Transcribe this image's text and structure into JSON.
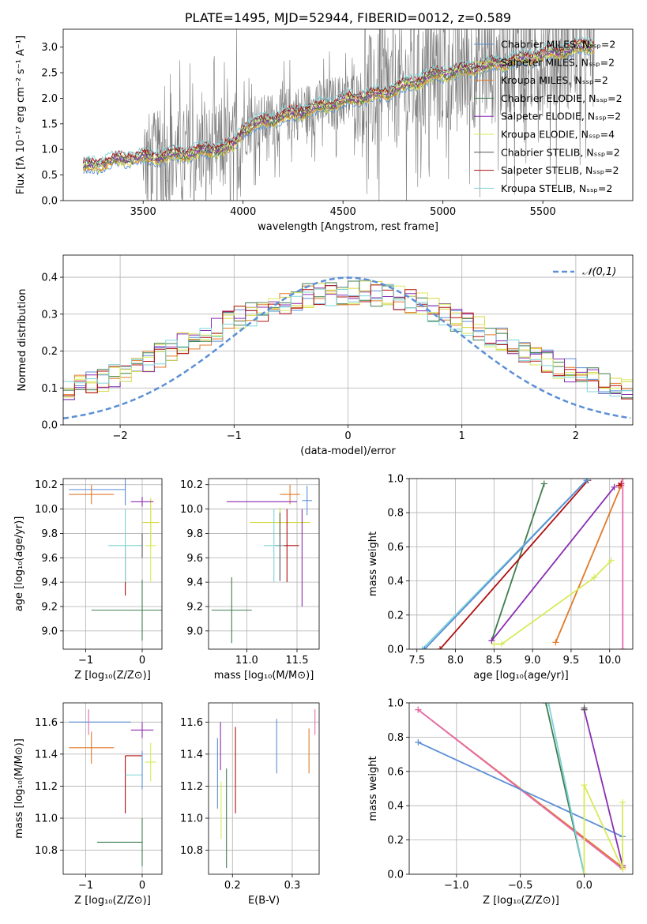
{
  "colors": {
    "chabrier_miles": "#5b8fd6",
    "salpeter_miles": "#d8d840",
    "kroupa_miles": "#e07a2a",
    "chabrier_elodie": "#3f7d4f",
    "salpeter_elodie": "#8a2db0",
    "kroupa_elodie": "#d8ea5a",
    "chabrier_stelib": "#555555",
    "salpeter_stelib": "#b01010",
    "kroupa_stelib": "#7fd3d8",
    "pink": "#e56bb0",
    "data_gray": "#7a7a7a",
    "normal_curve": "#5b8fd6"
  },
  "chart_data": [
    {
      "id": "spectrum",
      "type": "line",
      "title": "PLATE=1495, MJD=52944, FIBERID=0012, z=0.589",
      "xlabel": "wavelength [Angstrom, rest frame]",
      "ylabel": "Flux [fλ 10⁻¹⁷ erg cm⁻² s⁻¹ A⁻¹]",
      "xlim": [
        3100,
        5950
      ],
      "ylim": [
        0,
        3.35
      ],
      "xticks": [
        3500,
        4000,
        4500,
        5000,
        5500
      ],
      "yticks": [
        0.0,
        0.5,
        1.0,
        1.5,
        2.0,
        2.5,
        3.0
      ],
      "legend": [
        "Chabrier MILES, Nₛₛₚ=2",
        "Salpeter MILES, Nₛₛₚ=2",
        "Kroupa MILES, Nₛₛₚ=2",
        "Chabrier ELODIE, Nₛₛₚ=2",
        "Salpeter ELODIE, Nₛₛₚ=2",
        "Kroupa ELODIE, Nₛₛₚ=4",
        "Chabrier STELIB, Nₛₛₚ=2",
        "Salpeter STELIB, Nₛₛₚ=2",
        "Kroupa STELIB, Nₛₛₚ=2"
      ],
      "legend_position": "right",
      "model_continuum": {
        "x": [
          3200,
          3280,
          3400,
          3550,
          3700,
          3850,
          3950,
          4000,
          4150,
          4300,
          4500,
          4700,
          4850,
          4950,
          5100,
          5300,
          5500,
          5750
        ],
        "y": [
          0.65,
          0.72,
          0.82,
          0.85,
          0.92,
          1.0,
          1.05,
          1.4,
          1.6,
          1.75,
          1.95,
          2.1,
          2.3,
          2.45,
          2.55,
          2.7,
          2.85,
          3.05
        ]
      }
    },
    {
      "id": "residuals",
      "type": "bar",
      "title": "",
      "xlabel": "(data-model)/error",
      "ylabel": "Normed distribution",
      "xlim": [
        -2.5,
        2.5
      ],
      "ylim": [
        0,
        0.46
      ],
      "xticks": [
        -2,
        -1,
        0,
        1,
        2
      ],
      "yticks": [
        0.0,
        0.1,
        0.2,
        0.3,
        0.4
      ],
      "legend": [
        "𝒩(0,1)"
      ],
      "legend_position": "top-right",
      "bin_edges_start": -2.5,
      "bin_width": 0.1
    },
    {
      "id": "age_vs_Z",
      "type": "scatter",
      "xlabel": "Z [log₁₀(Z/Z⊙)]",
      "ylabel": "age  [log₁₀(age/yr)]",
      "xlim": [
        -1.4,
        0.35
      ],
      "ylim": [
        8.85,
        10.25
      ],
      "xticks": [
        -1,
        0
      ],
      "yticks": [
        9.0,
        9.2,
        9.4,
        9.6,
        9.8,
        10.0,
        10.2
      ],
      "points": [
        {
          "c": "chabrier_miles",
          "x": -0.3,
          "y": 10.16,
          "xe": 0.0,
          "ye": 0.13,
          "x0": -1.3,
          "x1": -0.3
        },
        {
          "c": "salpeter_miles",
          "x": 0.15,
          "y": 9.89,
          "xe": 0.15,
          "ye": 0.2
        },
        {
          "c": "kroupa_miles",
          "x": -0.9,
          "y": 10.12,
          "xe": 0.4,
          "ye": 0.08
        },
        {
          "c": "chabrier_elodie",
          "x": 0.0,
          "y": 9.17,
          "xe": 0.9,
          "ye": 0.25
        },
        {
          "c": "salpeter_elodie",
          "x": 0.0,
          "y": 10.06,
          "xe": 0.2,
          "ye": 0.04
        },
        {
          "c": "kroupa_elodie",
          "x": 0.15,
          "y": 9.7,
          "xe": 0.1,
          "ye": 0.3
        },
        {
          "c": "salpeter_stelib",
          "x": -0.3,
          "y": 9.49,
          "xe": 0.0,
          "ye": 0.2
        },
        {
          "c": "kroupa_stelib",
          "x": -0.3,
          "y": 9.7,
          "xe": 0.3,
          "ye": 0.3
        },
        {
          "c": "chabrier_stelib",
          "x": 0.0,
          "y": 9.7,
          "xe": 0.0,
          "ye": 0.1
        }
      ]
    },
    {
      "id": "age_vs_mass",
      "type": "scatter",
      "xlabel": "mass [log₁₀(M/M⊙)]",
      "ylabel": "",
      "xlim": [
        10.62,
        11.72
      ],
      "ylim": [
        8.85,
        10.25
      ],
      "xticks": [
        11.0,
        11.5
      ],
      "yticks": [
        9.0,
        9.2,
        9.4,
        9.6,
        9.8,
        10.0,
        10.2
      ],
      "points": [
        {
          "c": "chabrier_miles",
          "x": 11.6,
          "y": 10.07,
          "xe": 0.05,
          "ye": 0.12
        },
        {
          "c": "salpeter_miles",
          "x": 11.33,
          "y": 9.89,
          "xe": 0.3,
          "ye": 0.12
        },
        {
          "c": "kroupa_miles",
          "x": 11.43,
          "y": 10.12,
          "xe": 0.1,
          "ye": 0.08
        },
        {
          "c": "chabrier_elodie",
          "x": 10.85,
          "y": 9.17,
          "xe": 0.2,
          "ye": 0.27
        },
        {
          "c": "salpeter_elodie",
          "x": 11.15,
          "y": 10.06,
          "xe": 0.35,
          "ye": 0.0
        },
        {
          "c": "salpeter_elodie",
          "x": 11.55,
          "y": 9.6,
          "xe": 0.0,
          "ye": 0.4
        },
        {
          "c": "salpeter_stelib",
          "x": 11.4,
          "y": 9.7,
          "xe": 0.12,
          "ye": 0.3
        },
        {
          "c": "kroupa_stelib",
          "x": 11.27,
          "y": 9.7,
          "xe": 0.1,
          "ye": 0.3
        },
        {
          "c": "chabrier_stelib",
          "x": 11.33,
          "y": 9.69,
          "xe": 0.0,
          "ye": 0.28
        }
      ]
    },
    {
      "id": "massweight_vs_age",
      "type": "line",
      "xlabel": "age  [log₁₀(age/yr)]",
      "ylabel": "mass weight",
      "xlim": [
        7.4,
        10.3
      ],
      "ylim": [
        0.0,
        1.0
      ],
      "xticks": [
        7.5,
        8.0,
        8.5,
        9.0,
        9.5,
        10.0
      ],
      "yticks": [
        0.0,
        0.2,
        0.4,
        0.6,
        0.8,
        1.0
      ],
      "series": [
        {
          "c": "chabrier_elodie",
          "x": [
            8.47,
            9.15
          ],
          "y": [
            0.05,
            0.97
          ]
        },
        {
          "c": "salpeter_stelib",
          "x": [
            7.8,
            9.72
          ],
          "y": [
            0.0,
            0.99
          ]
        },
        {
          "c": "kroupa_stelib",
          "x": [
            7.57,
            9.72
          ],
          "y": [
            0.0,
            1.0
          ]
        },
        {
          "c": "chabrier_miles",
          "x": [
            7.6,
            9.7
          ],
          "y": [
            0.0,
            0.99
          ]
        },
        {
          "c": "salpeter_elodie",
          "x": [
            8.47,
            10.06
          ],
          "y": [
            0.05,
            0.95
          ]
        },
        {
          "c": "kroupa_miles",
          "x": [
            9.3,
            10.15
          ],
          "y": [
            0.04,
            0.96
          ]
        },
        {
          "c": "salpeter_stelib",
          "x": [
            10.12,
            10.15
          ],
          "y": [
            0.96,
            0.97
          ]
        },
        {
          "c": "kroupa_elodie",
          "x": [
            8.5,
            8.6,
            9.8,
            10.02
          ],
          "y": [
            0.03,
            0.03,
            0.42,
            0.52
          ]
        },
        {
          "c": "pink",
          "x": [
            10.17,
            10.17
          ],
          "y": [
            0.0,
            1.0
          ]
        }
      ]
    },
    {
      "id": "mass_vs_Z",
      "type": "scatter",
      "xlabel": "Z [log₁₀(Z/Z⊙)]",
      "ylabel": "mass [log₁₀(M/M⊙)]",
      "xlim": [
        -1.4,
        0.35
      ],
      "ylim": [
        10.65,
        11.72
      ],
      "xticks": [
        -1,
        0
      ],
      "yticks": [
        10.8,
        11.0,
        11.2,
        11.4,
        11.6
      ],
      "points": [
        {
          "c": "chabrier_miles",
          "x": -0.75,
          "y": 11.6,
          "xe": 0.55,
          "ye": 0.0
        },
        {
          "c": "pink",
          "x": -0.95,
          "y": 11.6,
          "xe": 0.0,
          "ye": 0.08
        },
        {
          "c": "kroupa_miles",
          "x": -0.9,
          "y": 11.44,
          "xe": 0.4,
          "ye": 0.1
        },
        {
          "c": "salpeter_elodie",
          "x": 0.0,
          "y": 11.55,
          "xe": 0.2,
          "ye": 0.05
        },
        {
          "c": "salpeter_stelib",
          "x": -0.3,
          "y": 11.21,
          "xe": 0.0,
          "ye": 0.18
        },
        {
          "c": "salpeter_stelib",
          "x": -0.15,
          "y": 11.39,
          "xe": 0.15,
          "ye": 0.0
        },
        {
          "c": "kroupa_stelib",
          "x": -0.15,
          "y": 11.27,
          "xe": 0.15,
          "ye": 0.0
        },
        {
          "c": "kroupa_elodie",
          "x": 0.15,
          "y": 11.35,
          "xe": 0.1,
          "ye": 0.12
        },
        {
          "c": "chabrier_elodie",
          "x": -0.4,
          "y": 10.85,
          "xe": 0.4,
          "ye": 0.0
        },
        {
          "c": "chabrier_elodie",
          "x": 0.0,
          "y": 10.85,
          "xe": 0.0,
          "ye": 0.15
        },
        {
          "c": "chabrier_miles",
          "x": 0.0,
          "y": 11.3,
          "xe": 0.0,
          "ye": 0.12
        }
      ]
    },
    {
      "id": "mass_vs_ebv",
      "type": "scatter",
      "xlabel": "E(B-V)",
      "ylabel": "",
      "xlim": [
        0.16,
        0.345
      ],
      "ylim": [
        10.65,
        11.72
      ],
      "xticks": [
        0.2,
        0.3
      ],
      "yticks": [
        10.8,
        11.0,
        11.2,
        11.4,
        11.6
      ],
      "points": [
        {
          "c": "chabrier_miles",
          "x": 0.175,
          "y": 11.28,
          "xe": 0.0,
          "ye": 0.22
        },
        {
          "c": "salpeter_elodie",
          "x": 0.18,
          "y": 11.45,
          "xe": 0.0,
          "ye": 0.15
        },
        {
          "c": "kroupa_elodie",
          "x": 0.181,
          "y": 11.05,
          "xe": 0.0,
          "ye": 0.18
        },
        {
          "c": "chabrier_elodie",
          "x": 0.19,
          "y": 11.0,
          "xe": 0.0,
          "ye": 0.31
        },
        {
          "c": "salpeter_stelib",
          "x": 0.205,
          "y": 11.3,
          "xe": 0.0,
          "ye": 0.27
        },
        {
          "c": "chabrier_miles",
          "x": 0.274,
          "y": 11.45,
          "xe": 0.0,
          "ye": 0.17
        },
        {
          "c": "kroupa_miles",
          "x": 0.328,
          "y": 11.42,
          "xe": 0.0,
          "ye": 0.14
        },
        {
          "c": "pink",
          "x": 0.338,
          "y": 11.6,
          "xe": 0.0,
          "ye": 0.08
        }
      ]
    },
    {
      "id": "massweight_vs_Z",
      "type": "line",
      "xlabel": "Z [log₁₀(Z/Z⊙)]",
      "ylabel": "mass weight",
      "xlim": [
        -1.37,
        0.38
      ],
      "ylim": [
        0.0,
        1.0
      ],
      "xticks": [
        -1.0,
        -0.5,
        0.0
      ],
      "yticks": [
        0.0,
        0.2,
        0.4,
        0.6,
        0.8,
        1.0
      ],
      "series": [
        {
          "c": "kroupa_miles",
          "x": [
            -1.3,
            0.3
          ],
          "y": [
            0.96,
            0.04
          ]
        },
        {
          "c": "pink",
          "x": [
            -1.3,
            0.3
          ],
          "y": [
            0.96,
            0.03
          ]
        },
        {
          "c": "chabrier_miles",
          "x": [
            -1.3,
            0.3
          ],
          "y": [
            0.77,
            0.22
          ]
        },
        {
          "c": "chabrier_elodie",
          "x": [
            -0.3,
            0.0
          ],
          "y": [
            1.0,
            0.0
          ]
        },
        {
          "c": "kroupa_stelib",
          "x": [
            -0.28,
            0.0
          ],
          "y": [
            1.0,
            0.0
          ]
        },
        {
          "c": "salpeter_elodie",
          "x": [
            0.0,
            0.3
          ],
          "y": [
            0.96,
            0.05
          ]
        },
        {
          "c": "kroupa_elodie",
          "x": [
            0.0,
            0.0,
            0.3,
            0.3
          ],
          "y": [
            0.0,
            0.52,
            0.03,
            0.42
          ]
        },
        {
          "c": "chabrier_stelib",
          "x": [
            0.0,
            0.0
          ],
          "y": [
            0.96,
            0.97
          ]
        }
      ]
    }
  ]
}
